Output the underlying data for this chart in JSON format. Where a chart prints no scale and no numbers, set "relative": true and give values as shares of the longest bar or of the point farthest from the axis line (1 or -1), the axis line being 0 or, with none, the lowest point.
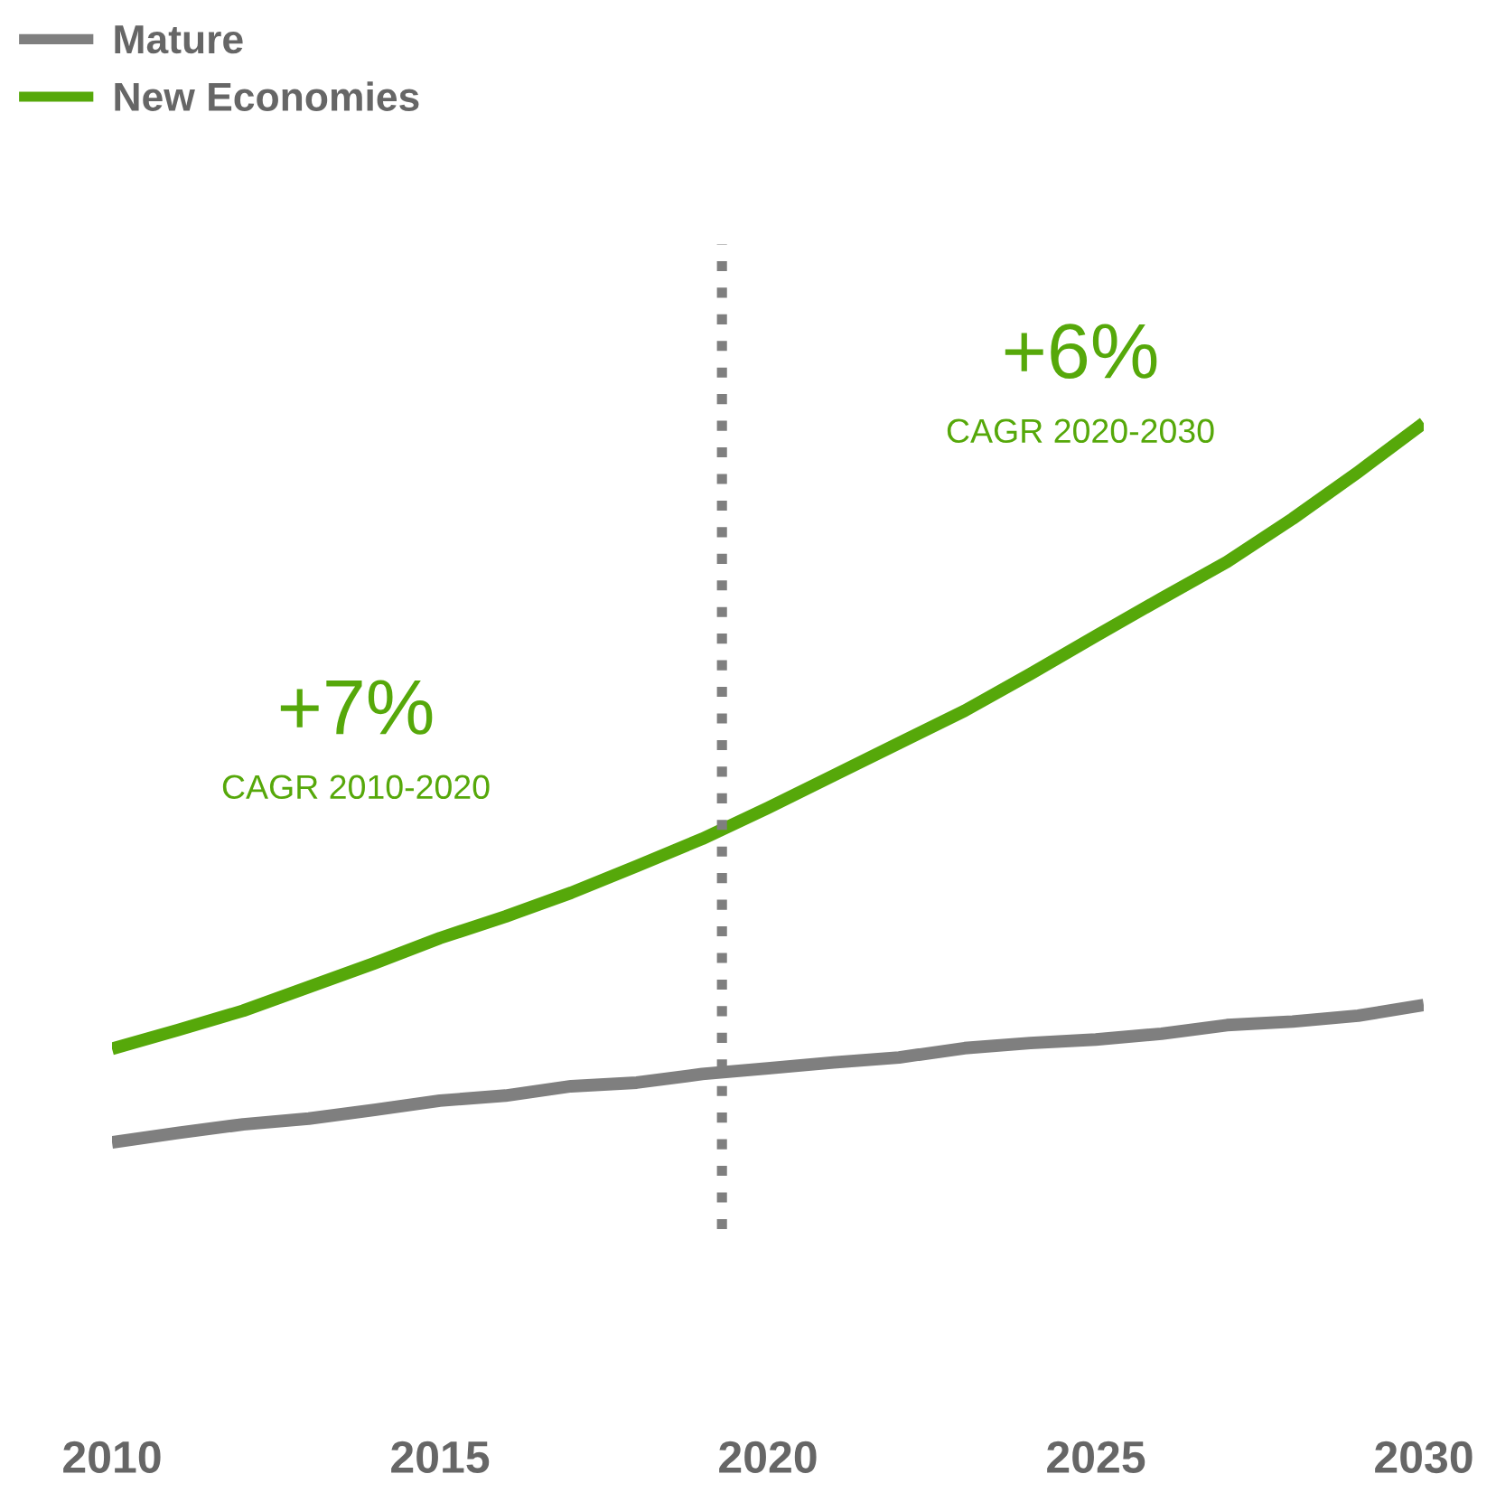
{
  "chart_data": {
    "type": "line",
    "relative": true,
    "x": [
      2010,
      2011,
      2012,
      2013,
      2014,
      2015,
      2016,
      2017,
      2018,
      2019,
      2020,
      2021,
      2022,
      2023,
      2024,
      2025,
      2026,
      2027,
      2028,
      2029,
      2030
    ],
    "xlim": [
      2010,
      2030
    ],
    "xticks": [
      2010,
      2015,
      2020,
      2025,
      2030
    ],
    "series": [
      {
        "name": "Mature",
        "color": "#7f7f7f",
        "values": [
          0,
          0.013,
          0.025,
          0.033,
          0.045,
          0.058,
          0.065,
          0.078,
          0.083,
          0.095,
          0.103,
          0.111,
          0.118,
          0.131,
          0.138,
          0.143,
          0.151,
          0.163,
          0.168,
          0.176,
          0.191
        ]
      },
      {
        "name": "New Economies",
        "color": "#56a80a",
        "values": [
          0.13,
          0.156,
          0.183,
          0.216,
          0.249,
          0.284,
          0.314,
          0.347,
          0.384,
          0.422,
          0.465,
          0.51,
          0.555,
          0.6,
          0.651,
          0.704,
          0.756,
          0.807,
          0.867,
          0.932,
          1
        ]
      }
    ],
    "ref_lines": [
      {
        "axis": "x",
        "value": 2019.3,
        "color": "#7f7f7f",
        "line_style": "dotted"
      }
    ],
    "annotations": [
      "+7%",
      "CAGR 2010-2020",
      "+6%",
      "CAGR 2020-2030"
    ],
    "legend": "top left",
    "grid": false,
    "marker": "none",
    "line_style": "solid"
  }
}
